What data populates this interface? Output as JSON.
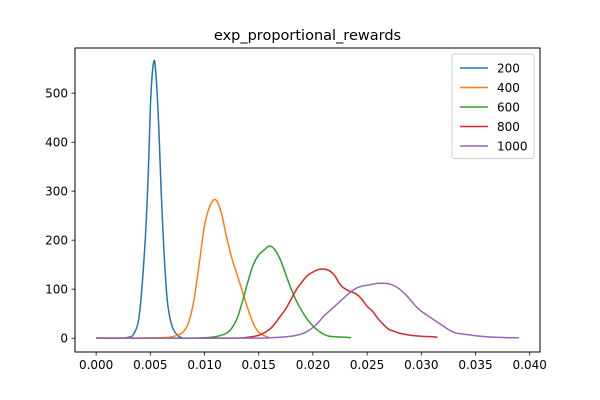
{
  "chart_data": {
    "type": "line",
    "title": "exp_proportional_rewards",
    "xlabel": "",
    "ylabel": "",
    "xlim": [
      -0.00195,
      0.04095
    ],
    "ylim": [
      -28.2,
      592.2
    ],
    "xticks": [
      0.0,
      0.005,
      0.01,
      0.015,
      0.02,
      0.025,
      0.03,
      0.035,
      0.04
    ],
    "xtick_labels": [
      "0.000",
      "0.005",
      "0.010",
      "0.015",
      "0.020",
      "0.025",
      "0.030",
      "0.035",
      "0.040"
    ],
    "yticks": [
      0,
      100,
      200,
      300,
      400,
      500
    ],
    "ytick_labels": [
      "0",
      "100",
      "200",
      "300",
      "400",
      "500"
    ],
    "grid": false,
    "legend_position": "upper right",
    "series": [
      {
        "name": "200",
        "color": "#1f77b4",
        "x": [
          0.0,
          0.002,
          0.003,
          0.0035,
          0.004,
          0.0045,
          0.0048,
          0.005,
          0.0052,
          0.0054,
          0.0056,
          0.0058,
          0.006,
          0.0063,
          0.0066,
          0.007,
          0.0075,
          0.008
        ],
        "y": [
          0,
          0,
          2,
          10,
          50,
          190,
          330,
          470,
          545,
          565,
          510,
          420,
          300,
          160,
          70,
          25,
          6,
          0
        ]
      },
      {
        "name": "400",
        "color": "#ff7f0e",
        "x": [
          0.0,
          0.006,
          0.007,
          0.0075,
          0.008,
          0.0085,
          0.009,
          0.0095,
          0.01,
          0.0105,
          0.011,
          0.0115,
          0.012,
          0.0125,
          0.013,
          0.0135,
          0.014,
          0.0145,
          0.015,
          0.0155,
          0.016
        ],
        "y": [
          0,
          1,
          3,
          6,
          12,
          30,
          75,
          150,
          230,
          270,
          283,
          260,
          210,
          165,
          130,
          95,
          60,
          30,
          12,
          5,
          1
        ]
      },
      {
        "name": "600",
        "color": "#2ca02c",
        "x": [
          0.0,
          0.008,
          0.01,
          0.011,
          0.012,
          0.0125,
          0.013,
          0.0135,
          0.014,
          0.0145,
          0.015,
          0.0155,
          0.016,
          0.0165,
          0.017,
          0.0175,
          0.018,
          0.0185,
          0.019,
          0.0195,
          0.02,
          0.0205,
          0.021,
          0.0215,
          0.022,
          0.023,
          0.0235
        ],
        "y": [
          0,
          0,
          1,
          3,
          10,
          20,
          40,
          75,
          115,
          150,
          170,
          180,
          188,
          180,
          160,
          130,
          100,
          75,
          55,
          38,
          25,
          15,
          8,
          4,
          3,
          2,
          1
        ]
      },
      {
        "name": "800",
        "color": "#d62728",
        "x": [
          0.0,
          0.012,
          0.014,
          0.015,
          0.016,
          0.0165,
          0.017,
          0.0175,
          0.018,
          0.0185,
          0.019,
          0.0195,
          0.02,
          0.0205,
          0.021,
          0.0215,
          0.022,
          0.0225,
          0.023,
          0.0235,
          0.024,
          0.0245,
          0.025,
          0.0255,
          0.026,
          0.0265,
          0.027,
          0.0275,
          0.028,
          0.029,
          0.03,
          0.031,
          0.0315
        ],
        "y": [
          0,
          0,
          2,
          6,
          18,
          30,
          45,
          60,
          80,
          100,
          115,
          128,
          135,
          140,
          141,
          138,
          128,
          110,
          100,
          95,
          90,
          80,
          65,
          55,
          40,
          28,
          18,
          14,
          10,
          6,
          4,
          3,
          2
        ]
      },
      {
        "name": "1000",
        "color": "#9467bd",
        "x": [
          0.0,
          0.014,
          0.016,
          0.017,
          0.018,
          0.0185,
          0.019,
          0.0195,
          0.02,
          0.0205,
          0.021,
          0.0215,
          0.022,
          0.0225,
          0.023,
          0.0235,
          0.024,
          0.0245,
          0.025,
          0.0255,
          0.026,
          0.0265,
          0.027,
          0.0275,
          0.028,
          0.0285,
          0.029,
          0.0295,
          0.03,
          0.031,
          0.032,
          0.033,
          0.034,
          0.035,
          0.036,
          0.037,
          0.038,
          0.039
        ],
        "y": [
          0,
          0,
          1,
          2,
          4,
          6,
          9,
          14,
          22,
          32,
          45,
          55,
          65,
          75,
          85,
          95,
          102,
          106,
          108,
          110,
          112,
          112,
          111,
          107,
          100,
          90,
          78,
          65,
          55,
          40,
          25,
          12,
          8,
          5,
          3,
          2,
          1,
          1
        ]
      }
    ]
  }
}
